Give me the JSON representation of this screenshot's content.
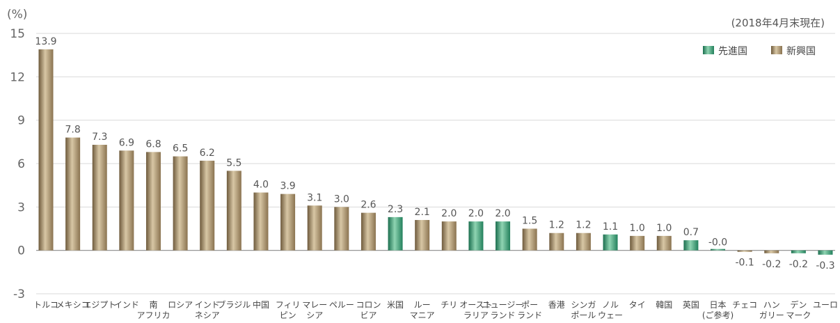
{
  "chart_data": {
    "type": "bar",
    "unit_label": "(%)",
    "note": "(2018年4月末現在)",
    "ylim": [
      -3,
      15
    ],
    "yticks": [
      15,
      12,
      9,
      6,
      3,
      0,
      -3
    ],
    "grid": true,
    "legend_position": "top-right",
    "legend": [
      {
        "label": "先進国",
        "group": "developed",
        "color": "#2e9b72"
      },
      {
        "label": "新興国",
        "group": "emerging",
        "color": "#a08863"
      }
    ],
    "categories": [
      {
        "label": [
          "トルコ"
        ],
        "value": 13.9,
        "value_label": "13.9",
        "group": "emerging"
      },
      {
        "label": [
          "メキシコ"
        ],
        "value": 7.8,
        "value_label": "7.8",
        "group": "emerging"
      },
      {
        "label": [
          "エジプト"
        ],
        "value": 7.3,
        "value_label": "7.3",
        "group": "emerging"
      },
      {
        "label": [
          "インド"
        ],
        "value": 6.9,
        "value_label": "6.9",
        "group": "emerging"
      },
      {
        "label": [
          "南",
          "アフリカ"
        ],
        "value": 6.8,
        "value_label": "6.8",
        "group": "emerging"
      },
      {
        "label": [
          "ロシア"
        ],
        "value": 6.5,
        "value_label": "6.5",
        "group": "emerging"
      },
      {
        "label": [
          "インド",
          "ネシア"
        ],
        "value": 6.2,
        "value_label": "6.2",
        "group": "emerging"
      },
      {
        "label": [
          "ブラジル"
        ],
        "value": 5.5,
        "value_label": "5.5",
        "group": "emerging"
      },
      {
        "label": [
          "中国"
        ],
        "value": 4.0,
        "value_label": "4.0",
        "group": "emerging"
      },
      {
        "label": [
          "フィリ",
          "ピン"
        ],
        "value": 3.9,
        "value_label": "3.9",
        "group": "emerging"
      },
      {
        "label": [
          "マレー",
          "シア"
        ],
        "value": 3.1,
        "value_label": "3.1",
        "group": "emerging"
      },
      {
        "label": [
          "ペルー"
        ],
        "value": 3.0,
        "value_label": "3.0",
        "group": "emerging"
      },
      {
        "label": [
          "コロン",
          "ビア"
        ],
        "value": 2.6,
        "value_label": "2.6",
        "group": "emerging"
      },
      {
        "label": [
          "米国"
        ],
        "value": 2.3,
        "value_label": "2.3",
        "group": "developed"
      },
      {
        "label": [
          "ルー",
          "マニア"
        ],
        "value": 2.1,
        "value_label": "2.1",
        "group": "emerging"
      },
      {
        "label": [
          "チリ"
        ],
        "value": 2.0,
        "value_label": "2.0",
        "group": "emerging"
      },
      {
        "label": [
          "オースト",
          "ラリア"
        ],
        "value": 2.0,
        "value_label": "2.0",
        "group": "developed"
      },
      {
        "label": [
          "ニュージー",
          "ランド"
        ],
        "value": 2.0,
        "value_label": "2.0",
        "group": "developed"
      },
      {
        "label": [
          "ポー",
          "ランド"
        ],
        "value": 1.5,
        "value_label": "1.5",
        "group": "emerging"
      },
      {
        "label": [
          "香港"
        ],
        "value": 1.2,
        "value_label": "1.2",
        "group": "emerging"
      },
      {
        "label": [
          "シンガ",
          "ポール"
        ],
        "value": 1.2,
        "value_label": "1.2",
        "group": "emerging"
      },
      {
        "label": [
          "ノル",
          "ウェー"
        ],
        "value": 1.1,
        "value_label": "1.1",
        "group": "developed"
      },
      {
        "label": [
          "タイ"
        ],
        "value": 1.0,
        "value_label": "1.0",
        "group": "emerging"
      },
      {
        "label": [
          "韓国"
        ],
        "value": 1.0,
        "value_label": "1.0",
        "group": "emerging"
      },
      {
        "label": [
          "英国"
        ],
        "value": 0.7,
        "value_label": "0.7",
        "group": "developed"
      },
      {
        "label": [
          "日本",
          "(ご参考)"
        ],
        "value": -0.0,
        "value_label": "-0.0",
        "group": "developed"
      },
      {
        "label": [
          "チェコ"
        ],
        "value": -0.1,
        "value_label": "-0.1",
        "group": "emerging"
      },
      {
        "label": [
          "ハン",
          "ガリー"
        ],
        "value": -0.2,
        "value_label": "-0.2",
        "group": "emerging"
      },
      {
        "label": [
          "デン",
          "マーク"
        ],
        "value": -0.2,
        "value_label": "-0.2",
        "group": "developed"
      },
      {
        "label": [
          "ユーロ"
        ],
        "value": -0.3,
        "value_label": "-0.3",
        "group": "developed"
      }
    ]
  }
}
